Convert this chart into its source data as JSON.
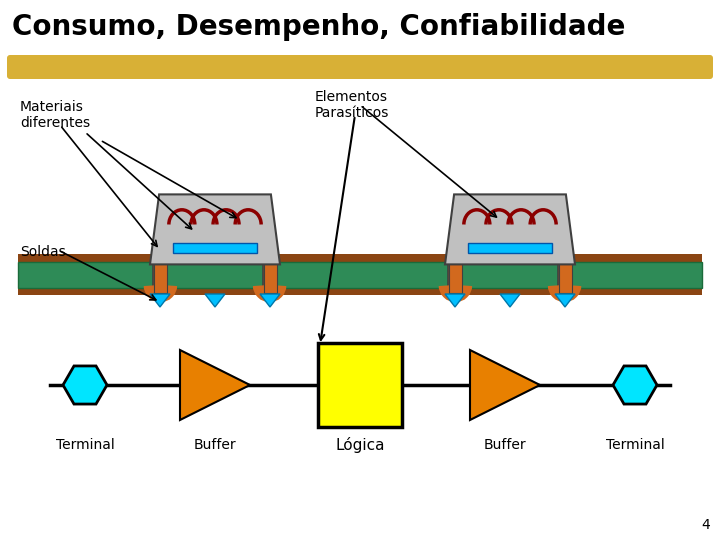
{
  "title": "Consumo, Desempenho, Confiabilidade",
  "bg_color": "#ffffff",
  "title_color": "#000000",
  "title_fontsize": 20,
  "highlight_color": "#D4A820",
  "pcb_color": "#2E8B57",
  "pcb_edge_color": "#8B4513",
  "component_body_color": "#C0C0C0",
  "component_edge_color": "#404040",
  "lead_color": "#D2691E",
  "cap_color": "#00BFFF",
  "inductor_color": "#8B0000",
  "terminal_color": "#00E5FF",
  "buffer_color": "#E88000",
  "logic_color": "#FFFF00",
  "solder_color": "#00BFFF",
  "label_materiais": "Materiais\ndiferentes",
  "label_elementos": "Elementos\nParasíticos",
  "label_soldas": "Soldas",
  "label_terminal": "Terminal",
  "label_buffer": "Buffer",
  "label_logica": "Lógica",
  "slide_number": "4"
}
